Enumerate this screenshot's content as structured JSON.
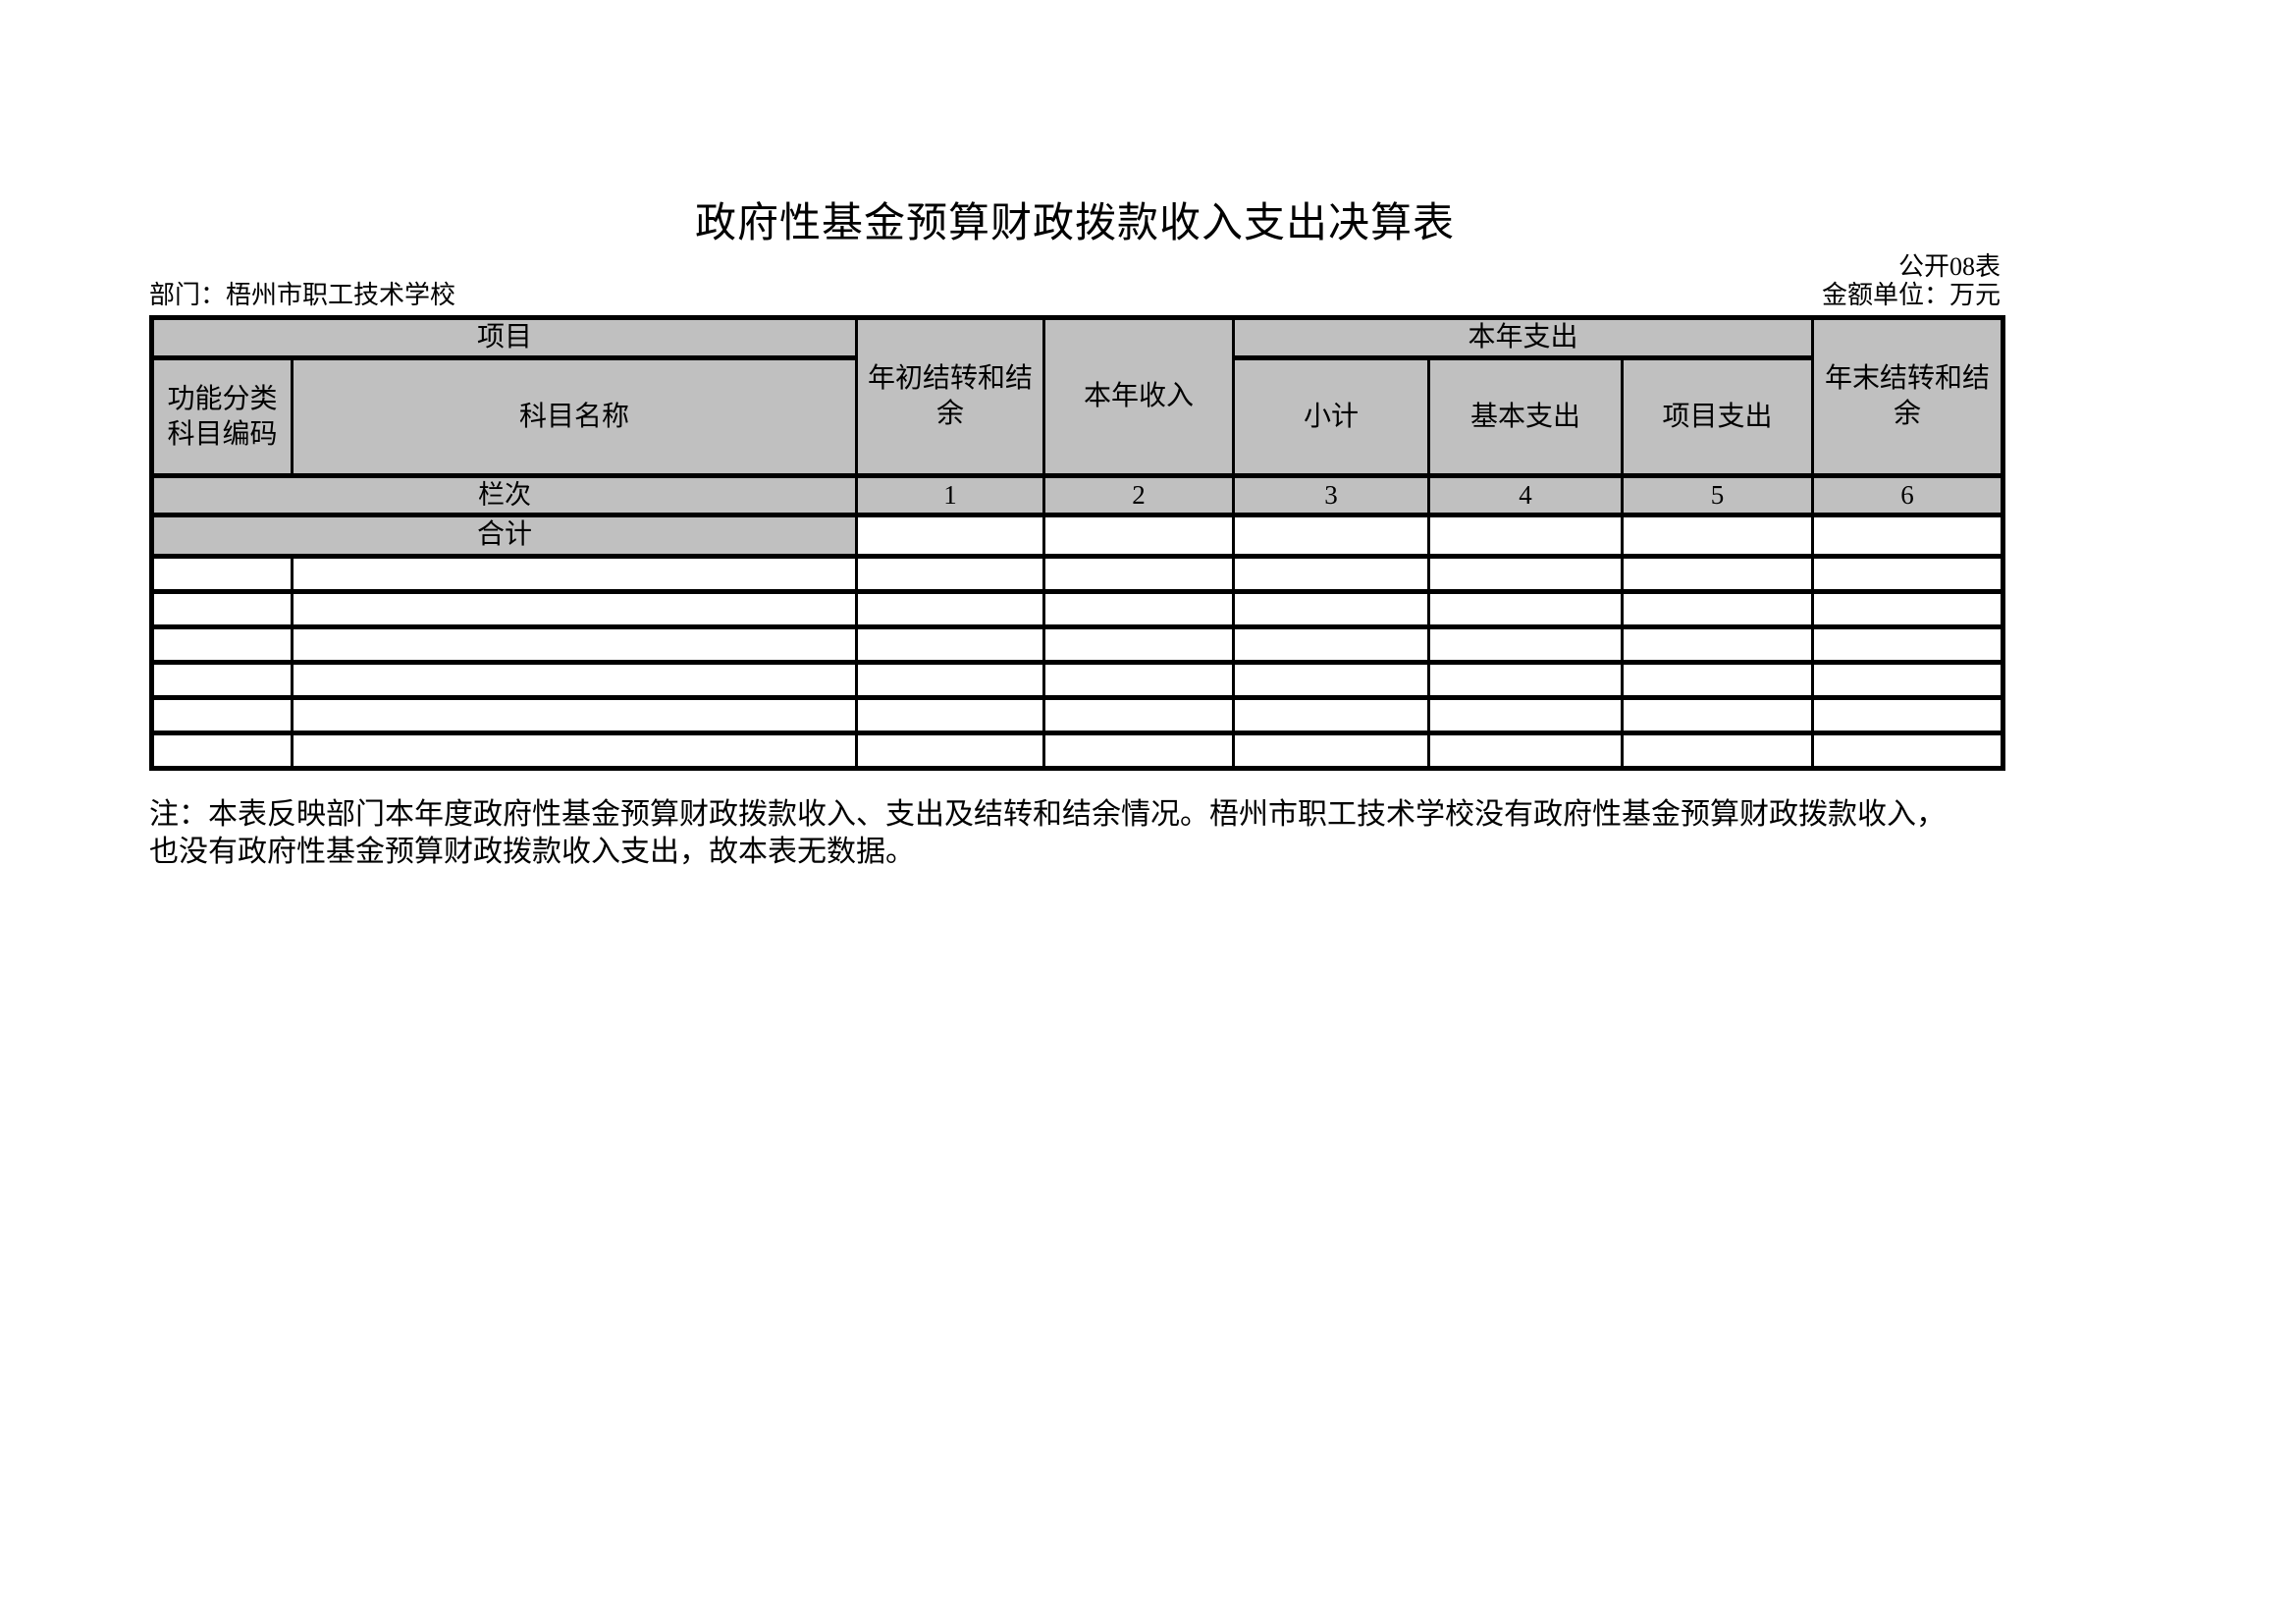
{
  "page": {
    "title": "政府性基金预算财政拨款收入支出决算表",
    "table_code": "公开08表",
    "department": "部门：梧州市职工技术学校",
    "unit": "金额单位：万元"
  },
  "table": {
    "header": {
      "project_group": "项目",
      "func_code": "功能分类科目编码",
      "subject_name": "科目名称",
      "begin_balance": "年初结转和结余",
      "year_income": "本年收入",
      "expense_group": "本年支出",
      "subtotal": "小计",
      "basic_expense": "基本支出",
      "project_expense": "项目支出",
      "end_balance": "年末结转和结余"
    },
    "index_row": {
      "label": "栏次",
      "indices": [
        "1",
        "2",
        "3",
        "4",
        "5",
        "6"
      ]
    },
    "total_row": {
      "label": "合计",
      "values": [
        "",
        "",
        "",
        "",
        "",
        ""
      ]
    },
    "data_rows": [
      [
        "",
        "",
        "",
        "",
        "",
        "",
        "",
        ""
      ],
      [
        "",
        "",
        "",
        "",
        "",
        "",
        "",
        ""
      ],
      [
        "",
        "",
        "",
        "",
        "",
        "",
        "",
        ""
      ],
      [
        "",
        "",
        "",
        "",
        "",
        "",
        "",
        ""
      ],
      [
        "",
        "",
        "",
        "",
        "",
        "",
        "",
        ""
      ],
      [
        "",
        "",
        "",
        "",
        "",
        "",
        "",
        ""
      ]
    ]
  },
  "note": {
    "line1": "注：本表反映部门本年度政府性基金预算财政拨款收入、支出及结转和结余情况。梧州市职工技术学校没有政府性基金预算财政拨款收入，",
    "line2": "也没有政府性基金预算财政拨款收入支出，故本表无数据。"
  },
  "colors": {
    "header_fill": "#c0c0c0",
    "border": "#000000",
    "text": "#000000",
    "background": "#ffffff"
  }
}
